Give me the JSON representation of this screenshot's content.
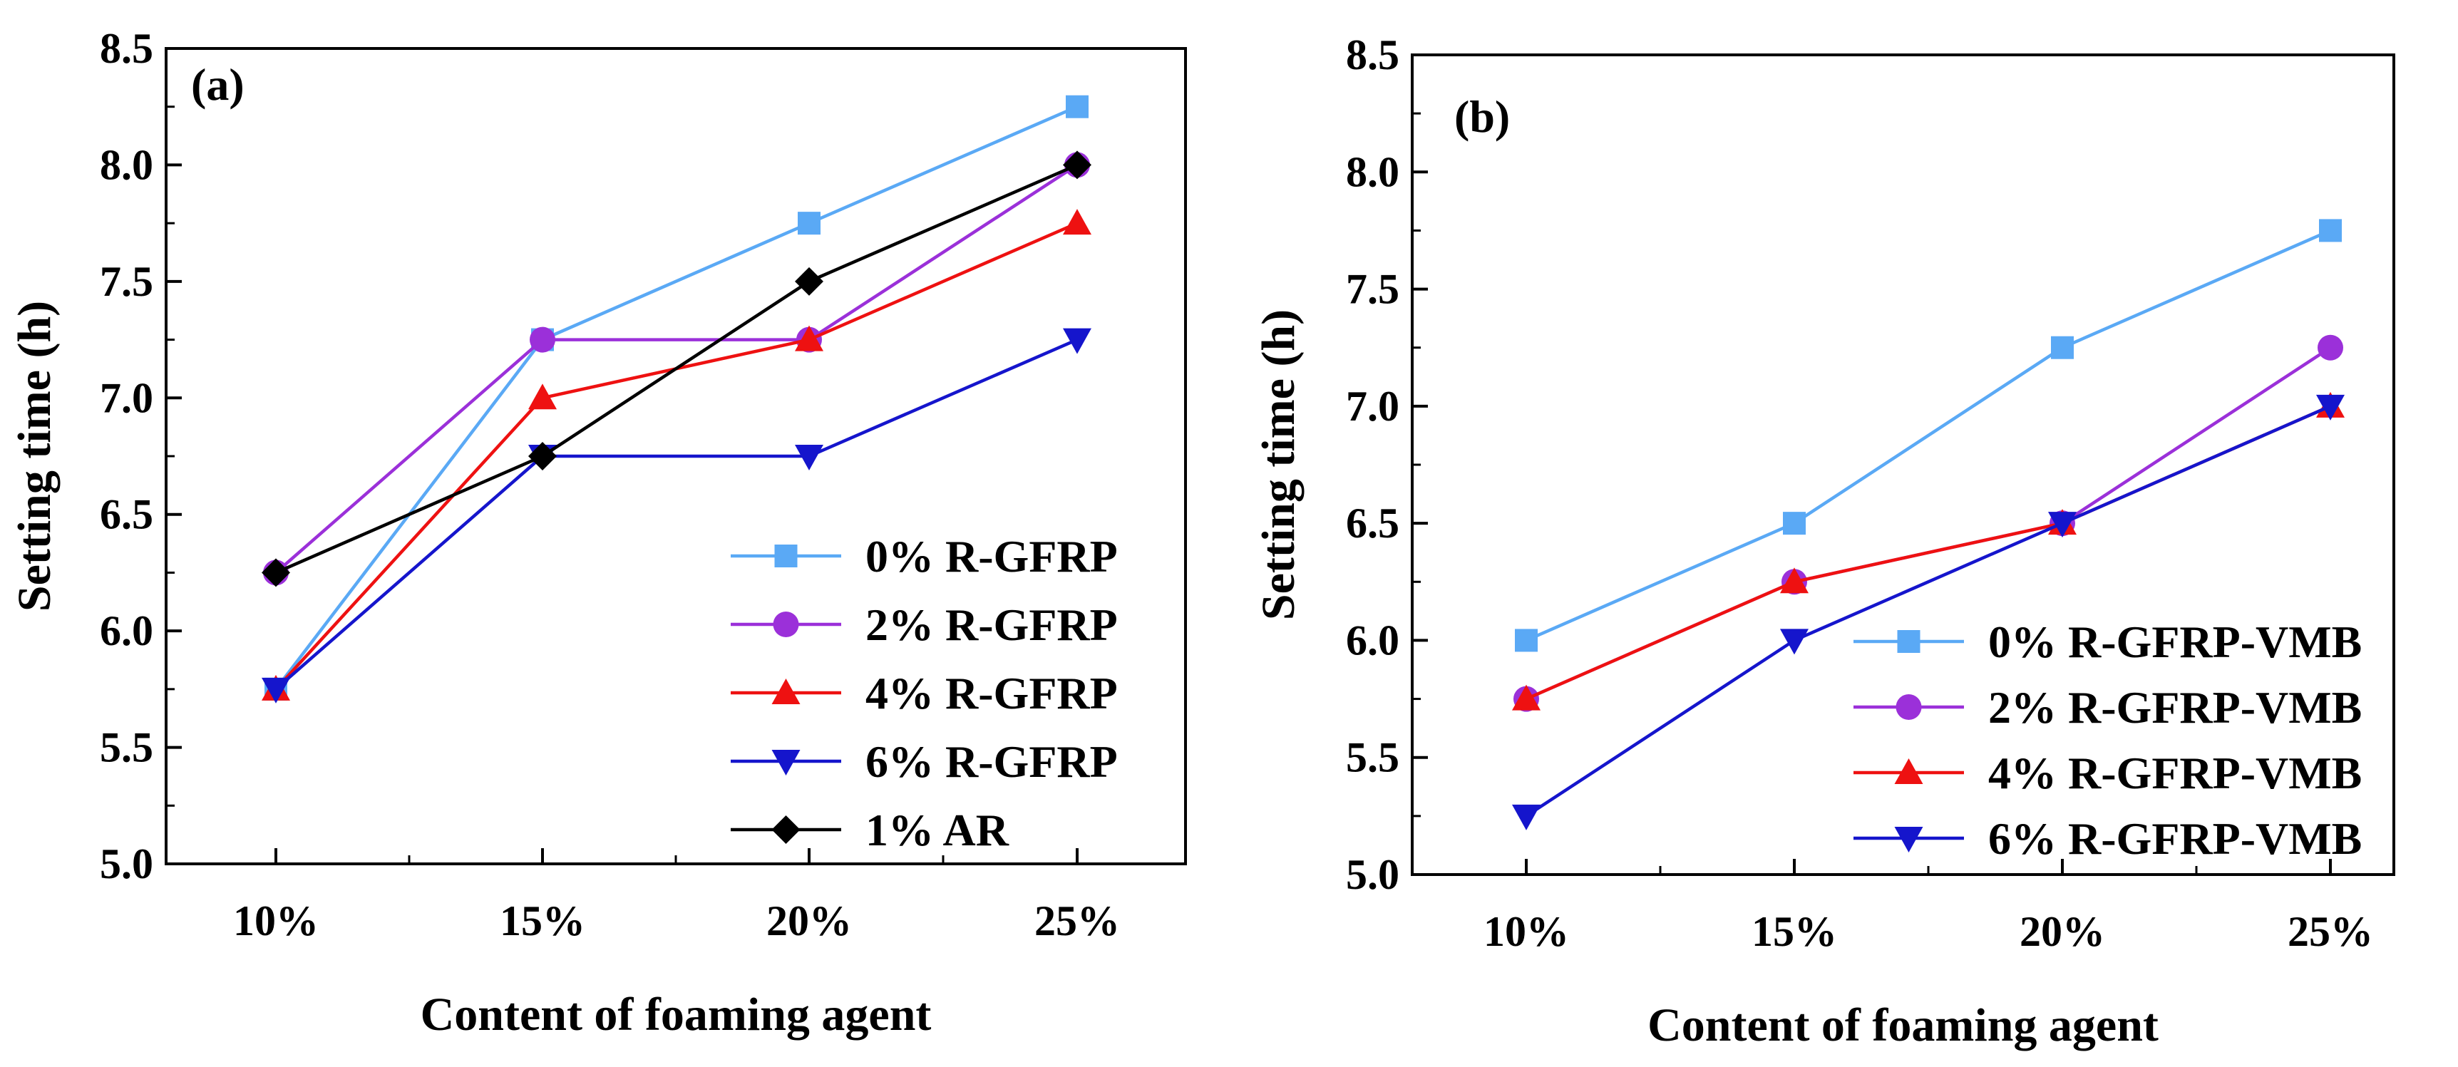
{
  "chart_data": [
    {
      "type": "line",
      "panel_label": "(a)",
      "xlabel": "Content of foaming agent",
      "ylabel": "Setting time (h)",
      "categories": [
        "10%",
        "15%",
        "20%",
        "25%"
      ],
      "ylim": [
        5.0,
        8.5
      ],
      "yticks": [
        "5.0",
        "5.5",
        "6.0",
        "6.5",
        "7.0",
        "7.5",
        "8.0",
        "8.5"
      ],
      "legend_position": "bottom-right",
      "series": [
        {
          "name": "0% R-GFRP",
          "color": "#5aa9f5",
          "marker": "square",
          "values": [
            5.75,
            7.25,
            7.75,
            8.25
          ]
        },
        {
          "name": "2% R-GFRP",
          "color": "#9b30d9",
          "marker": "circle",
          "values": [
            6.25,
            7.25,
            7.25,
            8.0
          ]
        },
        {
          "name": "4% R-GFRP",
          "color": "#ee1111",
          "marker": "triangle-up",
          "values": [
            5.75,
            7.0,
            7.25,
            7.75
          ]
        },
        {
          "name": "6% R-GFRP",
          "color": "#1515cc",
          "marker": "triangle-down",
          "values": [
            5.75,
            6.75,
            6.75,
            7.25
          ]
        },
        {
          "name": "1% AR",
          "color": "#000000",
          "marker": "diamond",
          "values": [
            6.25,
            6.75,
            7.5,
            8.0
          ]
        }
      ]
    },
    {
      "type": "line",
      "panel_label": "(b)",
      "xlabel": "Content of foaming agent",
      "ylabel": "Setting time (h)",
      "categories": [
        "10%",
        "15%",
        "20%",
        "25%"
      ],
      "ylim": [
        5.0,
        8.5
      ],
      "yticks": [
        "5.0",
        "5.5",
        "6.0",
        "6.5",
        "7.0",
        "7.5",
        "8.0",
        "8.5"
      ],
      "legend_position": "bottom-right",
      "series": [
        {
          "name": "0% R-GFRP-VMB",
          "color": "#5aa9f5",
          "marker": "square",
          "values": [
            6.0,
            6.5,
            7.25,
            7.75
          ]
        },
        {
          "name": "2% R-GFRP-VMB",
          "color": "#9b30d9",
          "marker": "circle",
          "values": [
            5.75,
            6.25,
            6.5,
            7.25
          ]
        },
        {
          "name": "4% R-GFRP-VMB",
          "color": "#ee1111",
          "marker": "triangle-up",
          "values": [
            5.75,
            6.25,
            6.5,
            7.0
          ]
        },
        {
          "name": "6% R-GFRP-VMB",
          "color": "#1515cc",
          "marker": "triangle-down",
          "values": [
            5.25,
            6.0,
            6.5,
            7.0
          ]
        }
      ]
    }
  ]
}
